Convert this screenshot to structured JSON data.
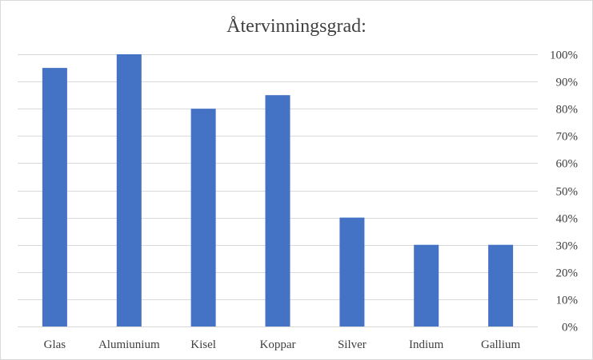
{
  "chart_data": {
    "type": "bar",
    "title": "Återvinningsgrad:",
    "categories": [
      "Glas",
      "Alumiunium",
      "Kisel",
      "Koppar",
      "Silver",
      "Indium",
      "Gallium"
    ],
    "values": [
      95,
      100,
      80,
      85,
      40,
      30,
      30
    ],
    "value_unit": "%",
    "xlabel": "",
    "ylabel": "",
    "ylim": [
      0,
      100
    ],
    "y_ticks": [
      "0%",
      "10%",
      "20%",
      "30%",
      "40%",
      "50%",
      "60%",
      "70%",
      "80%",
      "90%",
      "100%"
    ],
    "y_axis_side": "right",
    "grid": true,
    "legend": "none",
    "bar_color": "#4472c4",
    "grid_color": "#d9d9d9"
  }
}
